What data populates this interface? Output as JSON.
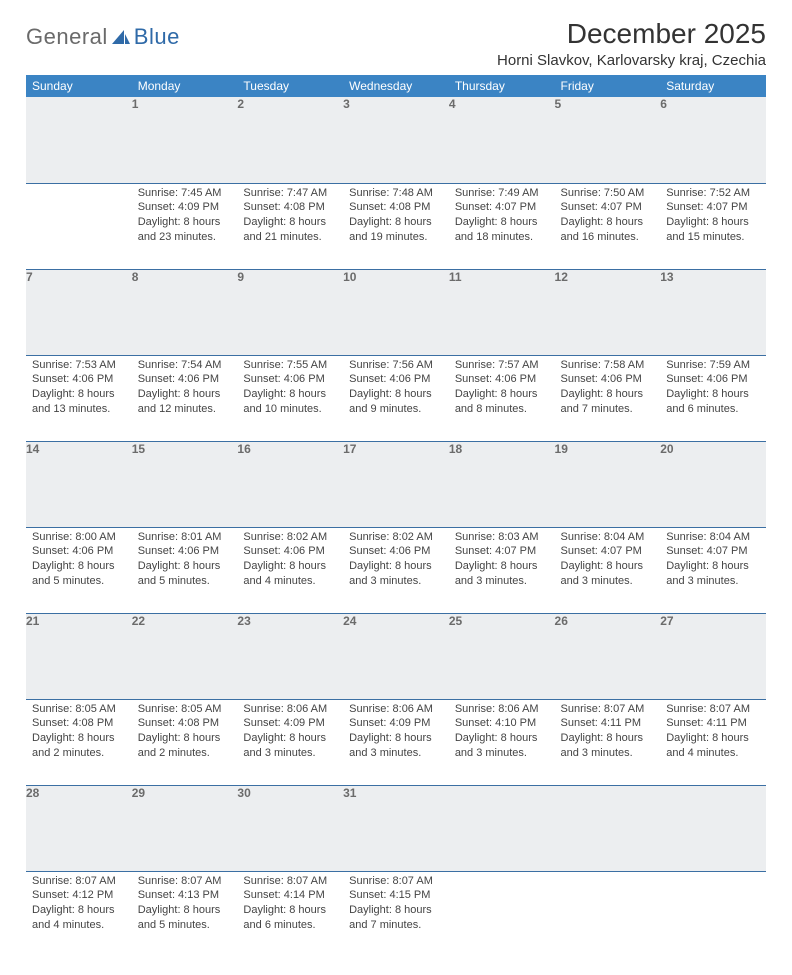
{
  "logo": {
    "text1": "General",
    "text2": "Blue"
  },
  "calendar": {
    "title": "December 2025",
    "location": "Horni Slavkov, Karlovarsky kraj, Czechia",
    "headers": [
      "Sunday",
      "Monday",
      "Tuesday",
      "Wednesday",
      "Thursday",
      "Friday",
      "Saturday"
    ],
    "header_bg": "#3b84c4",
    "header_fg": "#ffffff",
    "daynum_bg": "#eceef0",
    "rule_color": "#3b6fa3",
    "weeks": [
      [
        null,
        {
          "n": "1",
          "sr": "7:45 AM",
          "ss": "4:09 PM",
          "dl": "8 hours and 23 minutes."
        },
        {
          "n": "2",
          "sr": "7:47 AM",
          "ss": "4:08 PM",
          "dl": "8 hours and 21 minutes."
        },
        {
          "n": "3",
          "sr": "7:48 AM",
          "ss": "4:08 PM",
          "dl": "8 hours and 19 minutes."
        },
        {
          "n": "4",
          "sr": "7:49 AM",
          "ss": "4:07 PM",
          "dl": "8 hours and 18 minutes."
        },
        {
          "n": "5",
          "sr": "7:50 AM",
          "ss": "4:07 PM",
          "dl": "8 hours and 16 minutes."
        },
        {
          "n": "6",
          "sr": "7:52 AM",
          "ss": "4:07 PM",
          "dl": "8 hours and 15 minutes."
        }
      ],
      [
        {
          "n": "7",
          "sr": "7:53 AM",
          "ss": "4:06 PM",
          "dl": "8 hours and 13 minutes."
        },
        {
          "n": "8",
          "sr": "7:54 AM",
          "ss": "4:06 PM",
          "dl": "8 hours and 12 minutes."
        },
        {
          "n": "9",
          "sr": "7:55 AM",
          "ss": "4:06 PM",
          "dl": "8 hours and 10 minutes."
        },
        {
          "n": "10",
          "sr": "7:56 AM",
          "ss": "4:06 PM",
          "dl": "8 hours and 9 minutes."
        },
        {
          "n": "11",
          "sr": "7:57 AM",
          "ss": "4:06 PM",
          "dl": "8 hours and 8 minutes."
        },
        {
          "n": "12",
          "sr": "7:58 AM",
          "ss": "4:06 PM",
          "dl": "8 hours and 7 minutes."
        },
        {
          "n": "13",
          "sr": "7:59 AM",
          "ss": "4:06 PM",
          "dl": "8 hours and 6 minutes."
        }
      ],
      [
        {
          "n": "14",
          "sr": "8:00 AM",
          "ss": "4:06 PM",
          "dl": "8 hours and 5 minutes."
        },
        {
          "n": "15",
          "sr": "8:01 AM",
          "ss": "4:06 PM",
          "dl": "8 hours and 5 minutes."
        },
        {
          "n": "16",
          "sr": "8:02 AM",
          "ss": "4:06 PM",
          "dl": "8 hours and 4 minutes."
        },
        {
          "n": "17",
          "sr": "8:02 AM",
          "ss": "4:06 PM",
          "dl": "8 hours and 3 minutes."
        },
        {
          "n": "18",
          "sr": "8:03 AM",
          "ss": "4:07 PM",
          "dl": "8 hours and 3 minutes."
        },
        {
          "n": "19",
          "sr": "8:04 AM",
          "ss": "4:07 PM",
          "dl": "8 hours and 3 minutes."
        },
        {
          "n": "20",
          "sr": "8:04 AM",
          "ss": "4:07 PM",
          "dl": "8 hours and 3 minutes."
        }
      ],
      [
        {
          "n": "21",
          "sr": "8:05 AM",
          "ss": "4:08 PM",
          "dl": "8 hours and 2 minutes."
        },
        {
          "n": "22",
          "sr": "8:05 AM",
          "ss": "4:08 PM",
          "dl": "8 hours and 2 minutes."
        },
        {
          "n": "23",
          "sr": "8:06 AM",
          "ss": "4:09 PM",
          "dl": "8 hours and 3 minutes."
        },
        {
          "n": "24",
          "sr": "8:06 AM",
          "ss": "4:09 PM",
          "dl": "8 hours and 3 minutes."
        },
        {
          "n": "25",
          "sr": "8:06 AM",
          "ss": "4:10 PM",
          "dl": "8 hours and 3 minutes."
        },
        {
          "n": "26",
          "sr": "8:07 AM",
          "ss": "4:11 PM",
          "dl": "8 hours and 3 minutes."
        },
        {
          "n": "27",
          "sr": "8:07 AM",
          "ss": "4:11 PM",
          "dl": "8 hours and 4 minutes."
        }
      ],
      [
        {
          "n": "28",
          "sr": "8:07 AM",
          "ss": "4:12 PM",
          "dl": "8 hours and 4 minutes."
        },
        {
          "n": "29",
          "sr": "8:07 AM",
          "ss": "4:13 PM",
          "dl": "8 hours and 5 minutes."
        },
        {
          "n": "30",
          "sr": "8:07 AM",
          "ss": "4:14 PM",
          "dl": "8 hours and 6 minutes."
        },
        {
          "n": "31",
          "sr": "8:07 AM",
          "ss": "4:15 PM",
          "dl": "8 hours and 7 minutes."
        },
        null,
        null,
        null
      ]
    ]
  }
}
